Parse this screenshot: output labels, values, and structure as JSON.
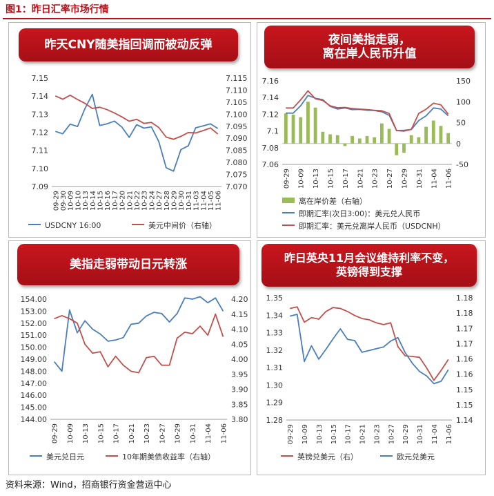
{
  "header": {
    "title": "图1：昨日汇率市场行情"
  },
  "footer": {
    "source": "资料来源：Wind，招商银行资金营运中心"
  },
  "colors": {
    "blue": "#4a7ebb",
    "red": "#c0504d",
    "green": "#9bbb59",
    "banner": "#b5121b"
  },
  "chart_data": [
    {
      "id": "p1",
      "type": "line",
      "title": "昨天CNY随美指回调而被动反弹",
      "x": [
        "09-29",
        "09-30",
        "10-09",
        "10-10",
        "10-13",
        "10-14",
        "10-15",
        "10-16",
        "10-17",
        "10-20",
        "10-21",
        "10-22",
        "10-23",
        "10-24",
        "10-27",
        "10-28",
        "10-29",
        "10-30",
        "10-31",
        "11-03",
        "11-04",
        "11-05",
        "11-06"
      ],
      "x_tick_labels": [
        "09-29",
        "09-30",
        "10-09",
        "10-10",
        "10-13",
        "10-14",
        "10-15",
        "10-16",
        "10-17",
        "10-20",
        "10-21",
        "10-22",
        "10-23",
        "10-24",
        "10-27",
        "10-28",
        "10-29",
        "10-30",
        "10-31",
        "11-03",
        "11-04",
        "11-05",
        "11-06"
      ],
      "y_left": {
        "range": [
          7.09,
          7.15
        ],
        "ticks": [
          "7.09",
          "7.10",
          "7.11",
          "7.12",
          "7.13",
          "7.14",
          "7.15"
        ]
      },
      "y_right": {
        "range": [
          7.07,
          7.115
        ],
        "ticks": [
          "7.070",
          "7.075",
          "7.080",
          "7.085",
          "7.090",
          "7.095",
          "7.100",
          "7.105",
          "7.110",
          "7.115"
        ]
      },
      "series": [
        {
          "name": "USDCNY 16:00",
          "axis": "left",
          "color": "#4a7ebb",
          "values": [
            7.1205,
            7.1192,
            7.1245,
            7.1232,
            7.1331,
            7.141,
            7.1238,
            7.1247,
            7.1262,
            7.1229,
            7.1172,
            7.1242,
            7.1223,
            7.123,
            7.1149,
            7.1004,
            7.0985,
            7.1104,
            7.1125,
            7.1225,
            7.1235,
            7.1247,
            7.1221
          ]
        },
        {
          "name": "美元中间价（右轴）",
          "axis": "right",
          "color": "#c0504d",
          "values": [
            7.1076,
            7.1062,
            7.1079,
            7.1061,
            7.1045,
            7.1024,
            7.1029,
            7.1019,
            7.1005,
            7.0989,
            7.0971,
            7.0979,
            7.0962,
            7.0966,
            7.0945,
            7.0905,
            7.0896,
            7.0908,
            7.0924,
            7.0922,
            7.0932,
            7.0943,
            7.0918
          ]
        }
      ]
    },
    {
      "id": "p2",
      "type": "line",
      "title": "夜间美指走弱，离在岸人民币升值",
      "x": [
        "09-29",
        "09-30",
        "10-09",
        "10-10",
        "10-13",
        "10-14",
        "10-15",
        "10-16",
        "10-17",
        "10-20",
        "10-21",
        "10-22",
        "10-23",
        "10-24",
        "10-27",
        "10-28",
        "10-29",
        "10-30",
        "10-31",
        "11-03",
        "11-04",
        "11-05",
        "11-06"
      ],
      "x_tick_labels": [
        "09-29",
        "10-09",
        "10-13",
        "10-15",
        "10-17",
        "10-21",
        "10-23",
        "10-27",
        "10-29",
        "10-31",
        "11-04",
        "11-06"
      ],
      "y_left": {
        "range": [
          7.06,
          7.16
        ],
        "ticks": [
          "7.06",
          "7.08",
          "7.1",
          "7.12",
          "7.14",
          "7.16"
        ]
      },
      "y_right": {
        "range": [
          -50,
          150
        ],
        "ticks": [
          "-50",
          "0",
          "50",
          "100",
          "150"
        ]
      },
      "series": [
        {
          "name": "离在岸价差（右轴）",
          "axis": "right",
          "type": "bar",
          "color": "#9bbb59",
          "values": [
            72,
            69,
            63,
            100,
            86,
            28,
            22,
            20,
            -6,
            18,
            12,
            18,
            15,
            48,
            35,
            -28,
            -22,
            20,
            15,
            40,
            55,
            42,
            25
          ]
        },
        {
          "name": "即期汇率(次日3:00)：美元兑人民币",
          "axis": "left",
          "color": "#4a7ebb",
          "values": [
            7.1215,
            7.1213,
            7.1302,
            7.1425,
            7.1392,
            7.1375,
            7.1295,
            7.1262,
            7.1275,
            7.1255,
            7.1258,
            7.1248,
            7.1245,
            7.123,
            7.1188,
            7.1005,
            7.1008,
            7.1018,
            7.1125,
            7.1182,
            7.1275,
            7.1262,
            7.1182
          ]
        },
        {
          "name": "即期汇率：美元兑离岸人民币（USDCNH）",
          "axis": "left",
          "color": "#c0504d",
          "values": [
            7.1275,
            7.1275,
            7.1372,
            7.148,
            7.1385,
            7.1365,
            7.1302,
            7.1278,
            7.1282,
            7.1268,
            7.1262,
            7.1255,
            7.1248,
            7.1242,
            7.121,
            7.1005,
            7.0998,
            7.102,
            7.121,
            7.126,
            7.1332,
            7.1312,
            7.1202
          ]
        }
      ]
    },
    {
      "id": "p3",
      "type": "line",
      "title": "美指走弱带动日元转涨",
      "x": [
        "09-29",
        "09-30",
        "10-09",
        "10-10",
        "10-13",
        "10-14",
        "10-15",
        "10-16",
        "10-17",
        "10-20",
        "10-21",
        "10-22",
        "10-23",
        "10-24",
        "10-27",
        "10-28",
        "10-29",
        "10-30",
        "10-31",
        "11-03",
        "11-04",
        "11-05",
        "11-06"
      ],
      "x_tick_labels": [
        "09-29",
        "10-09",
        "10-13",
        "10-15",
        "10-17",
        "10-21",
        "10-23",
        "10-27",
        "10-29",
        "10-31",
        "11-04",
        "11-06"
      ],
      "y_left": {
        "range": [
          144,
          154
        ],
        "ticks": [
          "144.00",
          "145.00",
          "146.00",
          "147.00",
          "148.00",
          "149.00",
          "150.00",
          "151.00",
          "152.00",
          "153.00",
          "154.00"
        ]
      },
      "y_right": {
        "range": [
          3.8,
          4.2
        ],
        "ticks": [
          "3.80",
          "3.85",
          "3.90",
          "3.95",
          "4.00",
          "4.05",
          "4.10",
          "4.15",
          "4.20"
        ]
      },
      "series": [
        {
          "name": "美元兑日元",
          "axis": "left",
          "color": "#4a7ebb",
          "values": [
            148.8,
            148.0,
            153.1,
            151.2,
            152.2,
            151.5,
            151.1,
            150.5,
            150.6,
            150.8,
            151.9,
            152.0,
            152.6,
            152.9,
            152.8,
            152.1,
            152.8,
            154.1,
            154.0,
            154.2,
            153.7,
            154.1,
            153.0
          ]
        },
        {
          "name": "10年期美债收益率（右轴）",
          "axis": "right",
          "color": "#c0504d",
          "values": [
            4.135,
            4.145,
            4.135,
            4.12,
            4.05,
            4.02,
            4.025,
            3.975,
            4.01,
            3.98,
            3.96,
            3.955,
            4.005,
            4.01,
            3.98,
            3.98,
            4.07,
            4.09,
            4.085,
            4.11,
            4.08,
            4.15,
            4.075
          ]
        }
      ]
    },
    {
      "id": "p4",
      "type": "line",
      "title": "昨日英央11月会议维持利率不变，英镑得到支撑",
      "x": [
        "09-29",
        "09-30",
        "10-09",
        "10-10",
        "10-13",
        "10-14",
        "10-15",
        "10-16",
        "10-17",
        "10-20",
        "10-21",
        "10-22",
        "10-23",
        "10-24",
        "10-27",
        "10-28",
        "10-29",
        "10-30",
        "10-31",
        "11-03",
        "11-04",
        "11-05",
        "11-06"
      ],
      "x_tick_labels": [
        "09-29",
        "10-09",
        "10-13",
        "10-15",
        "10-17",
        "10-21",
        "10-23",
        "10-27",
        "10-29",
        "10-31",
        "11-04",
        "11-06"
      ],
      "y_left": {
        "range": [
          1.28,
          1.35
        ],
        "ticks": [
          "1.28",
          "1.29",
          "1.30",
          "1.31",
          "1.32",
          "1.33",
          "1.34",
          "1.35"
        ]
      },
      "y_right": {
        "range": [
          1.14,
          1.18
        ],
        "ticks": [
          "1.14",
          "1.15",
          "1.15",
          "1.16",
          "1.16",
          "1.17",
          "1.17",
          "1.18",
          "1.18"
        ]
      },
      "series": [
        {
          "name": "英镑兑美元（右）",
          "axis": "right",
          "color": "#c0504d",
          "values": [
            1.1765,
            1.177,
            1.172,
            1.1735,
            1.173,
            1.1755,
            1.1768,
            1.1765,
            1.1755,
            1.1742,
            1.1732,
            1.1728,
            1.1718,
            1.1712,
            1.1718,
            1.164,
            1.161,
            1.1608,
            1.1605,
            1.157,
            1.153,
            1.1562,
            1.1598
          ]
        },
        {
          "name": "欧元兑美元",
          "axis": "left",
          "color": "#4a7ebb",
          "values": [
            1.3395,
            1.3405,
            1.3135,
            1.3225,
            1.3148,
            1.3205,
            1.3265,
            1.3322,
            1.3262,
            1.3255,
            1.3188,
            1.3198,
            1.3208,
            1.3218,
            1.3252,
            1.3272,
            1.3186,
            1.3125,
            1.3078,
            1.3052,
            1.3008,
            1.3022,
            1.3088
          ]
        }
      ]
    }
  ]
}
